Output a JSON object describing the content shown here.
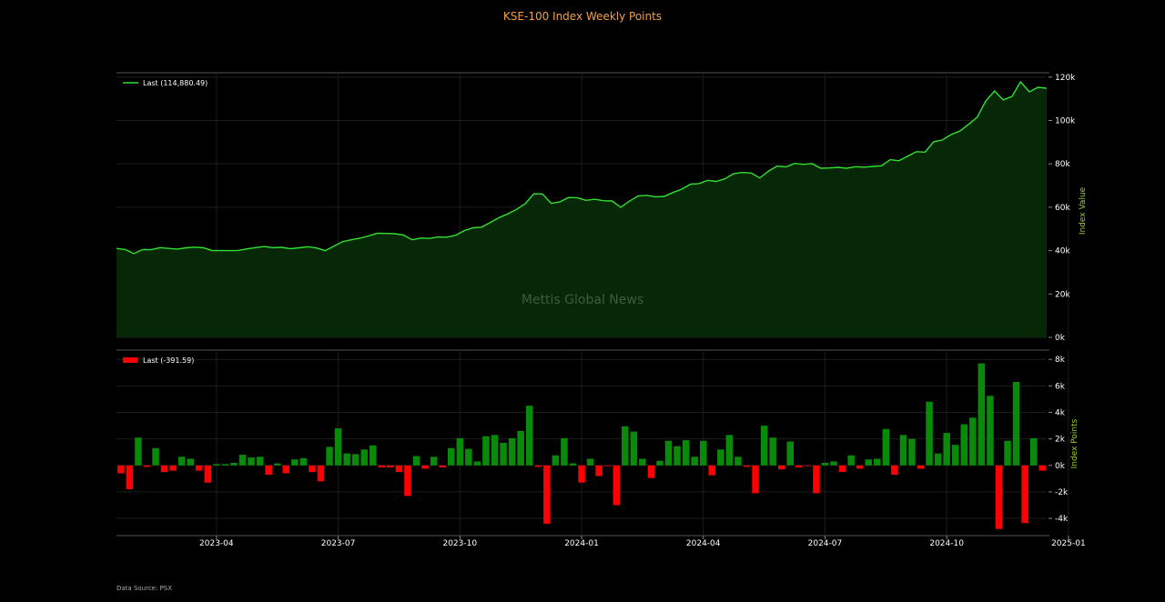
{
  "title": "KSE-100 Index Weekly Points",
  "watermark": "Mettis Global News",
  "footer": "Data Source: PSX",
  "colors": {
    "line": "#32e032",
    "area": "#062806",
    "pos": "#0a8a0a",
    "neg": "#ff0000",
    "title": "#f0a04b",
    "axis_title": "#9acd32"
  },
  "chart_data": [
    {
      "type": "area",
      "legend": "Last (114,880.49)",
      "ylabel": "Index Value",
      "ylim": [
        0,
        122000
      ],
      "yticks": [
        0,
        20000,
        40000,
        60000,
        80000,
        100000,
        120000
      ],
      "ytick_labels": [
        "0k",
        "20k",
        "40k",
        "60k",
        "80k",
        "100k",
        "120k"
      ],
      "grid": true,
      "legend_position": "top-left",
      "x_start": "2023-01-13",
      "x_interval": "weekly",
      "values": [
        41000,
        40500,
        38600,
        40500,
        40400,
        41400,
        41000,
        40700,
        41300,
        41600,
        41300,
        40000,
        40000,
        40000,
        40100,
        40800,
        41400,
        41900,
        41400,
        41500,
        40900,
        41300,
        41800,
        41200,
        40000,
        42000,
        44100,
        45000,
        45700,
        46800,
        48000,
        47900,
        47800,
        47200,
        45000,
        45800,
        45600,
        46300,
        46200,
        47100,
        49200,
        50500,
        50800,
        53000,
        55200,
        56900,
        59000,
        61600,
        66200,
        66100,
        61800,
        62500,
        64500,
        64400,
        63200,
        63700,
        63000,
        62900,
        60000,
        62800,
        65200,
        65500,
        64800,
        65000,
        66800,
        68300,
        70600,
        70900,
        72400,
        71900,
        73100,
        75500,
        76000,
        75800,
        73500,
        76700,
        79000,
        78600,
        80200,
        79800,
        80100,
        78000,
        78100,
        78400,
        78000,
        78700,
        78500,
        78800,
        79100,
        81900,
        81400,
        83500,
        85600,
        85400,
        90200,
        91000,
        93500,
        95100,
        98200,
        101500,
        109000,
        113600,
        109500,
        111000,
        117800,
        113200,
        115300,
        114880
      ]
    },
    {
      "type": "bar",
      "legend": "Last (-391.59)",
      "ylabel": "Index Points",
      "ylim": [
        -5300,
        8700
      ],
      "yticks": [
        -4000,
        -2000,
        0,
        2000,
        4000,
        6000,
        8000
      ],
      "ytick_labels": [
        "-4k",
        "-2k",
        "0k",
        "2k",
        "4k",
        "6k",
        "8k"
      ],
      "grid": true,
      "legend_position": "top-left",
      "values": [
        -600,
        -1800,
        2100,
        -100,
        1300,
        -500,
        -400,
        650,
        500,
        -400,
        -1300,
        100,
        100,
        200,
        800,
        600,
        650,
        -700,
        150,
        -600,
        450,
        550,
        -500,
        -1200,
        1400,
        2800,
        900,
        850,
        1200,
        1500,
        -150,
        -150,
        -500,
        -2300,
        700,
        -250,
        650,
        -150,
        1300,
        2050,
        1250,
        300,
        2200,
        2300,
        1700,
        2050,
        2600,
        4500,
        -100,
        -4400,
        750,
        2050,
        150,
        -1300,
        500,
        -800,
        -50,
        -3000,
        2950,
        2550,
        500,
        -950,
        350,
        1850,
        1450,
        1900,
        650,
        1850,
        -750,
        1200,
        2300,
        650,
        -100,
        -2100,
        3000,
        2100,
        -300,
        1800,
        -150,
        -50,
        -2100,
        200,
        300,
        -500,
        750,
        -250,
        450,
        500,
        2750,
        -700,
        2300,
        2000,
        -250,
        4800,
        900,
        2450,
        1550,
        3100,
        3600,
        7700,
        5250,
        -4800,
        1850,
        6300,
        -4350,
        2050,
        -390
      ]
    },
    {
      "type": "axis",
      "xtick_labels": [
        "2023-04",
        "2023-07",
        "2023-10",
        "2024-01",
        "2024-04",
        "2024-07",
        "2024-10",
        "2025-01"
      ],
      "xtick_weeks": [
        11.5,
        25.5,
        39.5,
        53.5,
        67.5,
        81.5,
        95.5,
        109.5
      ]
    }
  ]
}
